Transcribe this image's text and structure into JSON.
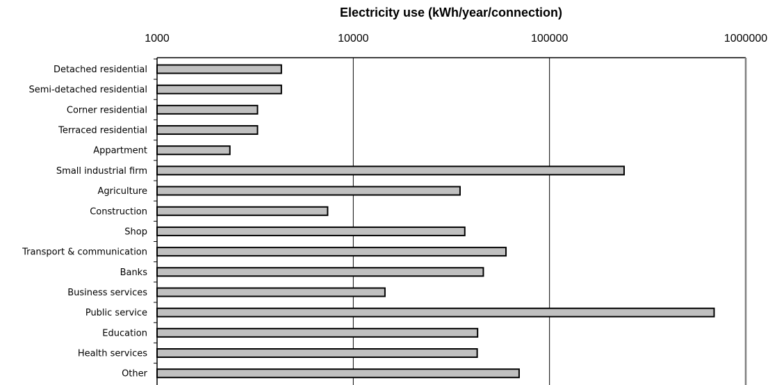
{
  "chart_data": {
    "type": "bar",
    "orientation": "horizontal",
    "title": "Electricity use (kWh/year/connection)",
    "xscale": "log",
    "xlim": [
      1000,
      1000000
    ],
    "xticks": [
      "1000",
      "10000",
      "100000",
      "1000000"
    ],
    "xaxis_position": "top",
    "grid": "vertical major gridlines",
    "legend": "none",
    "colors": {
      "bar_fill": "#c0c0c0",
      "bar_stroke": "#000000",
      "frame_right": "#808080"
    },
    "categories": [
      "Detached residential",
      "Semi-detached residential",
      "Corner residential",
      "Terraced residential",
      "Appartment",
      "Small industrial firm",
      "Agriculture",
      "Construction",
      "Shop",
      "Transport & communication",
      "Banks",
      "Business services",
      "Public service",
      "Education",
      "Health services",
      "Other"
    ],
    "values": [
      4300,
      4300,
      3250,
      3250,
      2350,
      240000,
      35000,
      7400,
      37000,
      60000,
      46000,
      14500,
      690000,
      43000,
      42800,
      70000
    ]
  }
}
